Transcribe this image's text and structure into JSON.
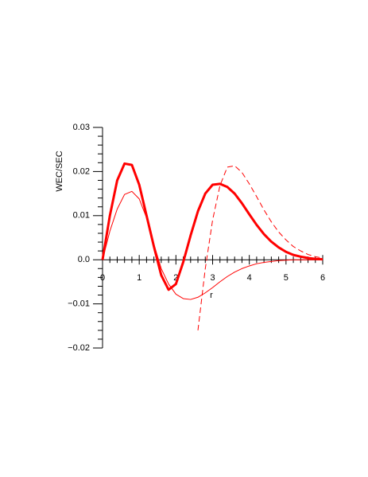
{
  "chart_data": {
    "type": "line",
    "xlabel": "r",
    "ylabel": "WEC/SEC",
    "x": [
      0,
      0.2,
      0.4,
      0.6,
      0.8,
      1.0,
      1.2,
      1.4,
      1.6,
      1.8,
      2.0,
      2.2,
      2.4,
      2.6,
      2.8,
      3.0,
      3.2,
      3.4,
      3.6,
      3.8,
      4.0,
      4.2,
      4.4,
      4.6,
      4.8,
      5.0,
      5.2,
      5.4,
      5.6,
      5.8,
      6.0
    ],
    "series": [
      {
        "color": "#ff0000",
        "linewidth": 3,
        "dashed": false,
        "values": [
          0,
          0.01,
          0.018,
          0.0218,
          0.0215,
          0.017,
          0.01,
          0.003,
          -0.0035,
          -0.0068,
          -0.0055,
          -0.0005,
          0.0055,
          0.011,
          0.015,
          0.017,
          0.0172,
          0.0165,
          0.015,
          0.0128,
          0.0103,
          0.0079,
          0.0058,
          0.0041,
          0.0028,
          0.0018,
          0.0011,
          0.0007,
          0.0004,
          0.0002,
          0.0001
        ]
      },
      {
        "color": "#ff0000",
        "linewidth": 1,
        "dashed": false,
        "values": [
          0,
          0.0065,
          0.0115,
          0.0148,
          0.0155,
          0.0138,
          0.0095,
          0.0035,
          -0.002,
          -0.0055,
          -0.0078,
          -0.0088,
          -0.009,
          -0.0085,
          -0.0075,
          -0.0063,
          -0.005,
          -0.0038,
          -0.0028,
          -0.002,
          -0.0014,
          -0.0009,
          -0.0006,
          -0.0004,
          -0.0002,
          -0.0001,
          0,
          0,
          0,
          0,
          0
        ]
      },
      {
        "color": "#ff0000",
        "linewidth": 1,
        "dashed": true,
        "values": [
          null,
          null,
          null,
          null,
          null,
          null,
          null,
          null,
          null,
          null,
          null,
          null,
          null,
          -0.016,
          -0.002,
          0.009,
          0.0168,
          0.021,
          0.0213,
          0.0198,
          0.0172,
          0.0143,
          0.0113,
          0.0086,
          0.0063,
          0.0045,
          0.003,
          0.002,
          0.0012,
          0.0007,
          0.0004
        ]
      }
    ],
    "xlim": [
      0,
      6
    ],
    "xticks": [
      0,
      1,
      2,
      3,
      4,
      5,
      6
    ],
    "ylim": [
      -0.02,
      0.03
    ],
    "yticks": [
      {
        "value": -0.02,
        "label": "−0.02"
      },
      {
        "value": -0.01,
        "label": "−0.01"
      },
      {
        "value": 0,
        "label": "0.0"
      },
      0.01,
      0.02,
      0.03
    ]
  }
}
